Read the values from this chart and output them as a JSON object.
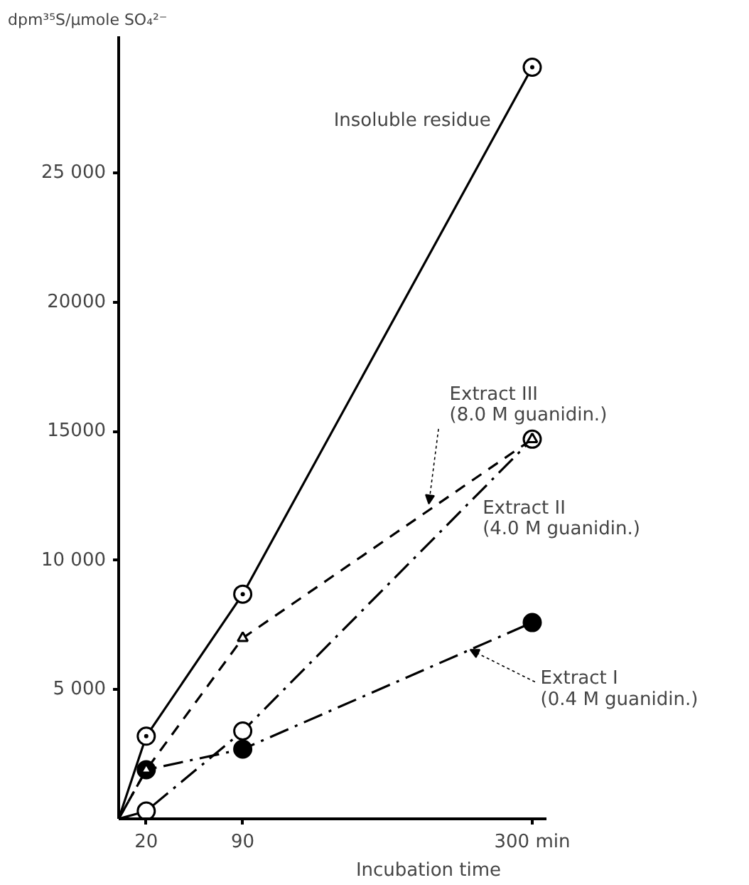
{
  "chart_data": {
    "type": "line",
    "xlabel": "Incubation time",
    "ylabel": "dpm³⁵S/µmole SO₄²⁻",
    "x": [
      0,
      20,
      90,
      300
    ],
    "xlim": [
      0,
      310
    ],
    "xticks": [
      20,
      90,
      {
        "value": 300,
        "label": "300 min"
      }
    ],
    "ylim": [
      0,
      30300
    ],
    "yticks": [
      {
        "value": 5000,
        "label": "5 000"
      },
      {
        "value": 10000,
        "label": "10 000"
      },
      {
        "value": 15000,
        "label": "15000"
      },
      {
        "value": 20000,
        "label": "20000"
      },
      {
        "value": 25000,
        "label": "25 000"
      }
    ],
    "grid": false,
    "series": [
      {
        "name": "Insoluble residue",
        "color": "#000000",
        "values": [
          0,
          3200,
          8700,
          29100
        ],
        "marker": "circle_dot",
        "line_style": "solid"
      },
      {
        "name": "Extract II",
        "color": "#000000",
        "values": [
          0,
          300,
          3400,
          14700
        ],
        "marker": "circle_open",
        "line_style": "dashdot"
      },
      {
        "name": "Extract I",
        "color": "#000000",
        "values": [
          0,
          1900,
          2700,
          7600
        ],
        "marker": "circle",
        "line_style": "dashdot"
      },
      {
        "name": "Extract III",
        "color": "#000000",
        "values": [
          0,
          1900,
          7000,
          14700
        ],
        "marker": "triangle",
        "line_style": "dashed"
      }
    ],
    "annotations": [
      {
        "text": "(8.0 M guanidin.)",
        "x": 225,
        "y": 12200
      },
      "(4.0 M guanidin.)",
      {
        "text": "(0.4 M guanidin.)",
        "x": 255,
        "y": 6550
      }
    ]
  }
}
